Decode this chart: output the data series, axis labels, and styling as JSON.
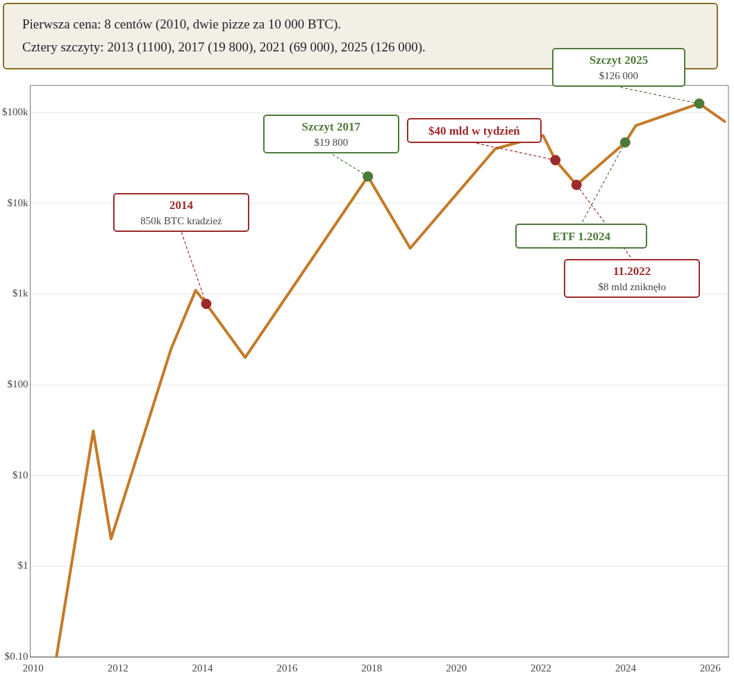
{
  "chart_data": {
    "type": "line",
    "title": "Pierwsza cena: 8 centów (2010, dwie pizze za 10 000 BTC).",
    "subtitle": "Cztery szczyty: 2013 (1100), 2017 (19 800), 2021 (69 000), 2025 (126 000).",
    "log": "y",
    "grid": "y",
    "legend": false,
    "xlim": [
      2009.93,
      2026.43
    ],
    "xticks": [
      2010,
      2012,
      2014,
      2016,
      2018,
      2020,
      2022,
      2024,
      2026
    ],
    "ylim": [
      0.1,
      200000
    ],
    "yticks": [
      {
        "value": 0.1,
        "label": "$0.10"
      },
      {
        "value": 1,
        "label": "$1"
      },
      {
        "value": 10,
        "label": "$10"
      },
      {
        "value": 100,
        "label": "$100"
      },
      {
        "value": 1000,
        "label": "$1k"
      },
      {
        "value": 10000,
        "label": "$10k"
      },
      {
        "value": 100000,
        "label": "$100k"
      }
    ],
    "series": [
      {
        "type": "line",
        "color": "#c57a27",
        "line_style": "solid",
        "x": [
          2010.55,
          2011.42,
          2011.84,
          2013.26,
          2013.84,
          2014.09,
          2015.01,
          2017.91,
          2018.91,
          2020.92,
          2022.05,
          2022.34,
          2022.84,
          2023.99,
          2024.24,
          2025.74,
          2026.34
        ],
        "values": [
          0.1,
          31,
          2,
          250,
          1100,
          780,
          200,
          19800,
          3200,
          40000,
          56000,
          30000,
          16000,
          47000,
          72000,
          126000,
          80000
        ]
      },
      {
        "type": "scatter",
        "marker": "circle",
        "colors": [
          "#9b2a2a",
          "#4d7a3a",
          "#9b2a2a",
          "#9b2a2a",
          "#4d7a3a",
          "#4d7a3a"
        ],
        "x": [
          2014.09,
          2017.91,
          2022.34,
          2022.84,
          2023.99,
          2025.74
        ],
        "values": [
          780,
          19800,
          30000,
          16000,
          47000,
          126000
        ]
      }
    ],
    "annotations": [
      {
        "text": "2014\n850k BTC kradzież",
        "x": 2014.09,
        "y": 780
      },
      {
        "text": "Szczyt 2017\n$19 800",
        "x": 2017.91,
        "y": 19800
      },
      {
        "text": "$40 mld w tydzień",
        "x": 2022.34,
        "y": 30000
      },
      {
        "text": "11.2022\n$8 mld zniknęło",
        "x": 2022.84,
        "y": 16000
      },
      {
        "text": "ETF 1.2024",
        "x": 2023.99,
        "y": 47000
      },
      {
        "text": "Szczyt 2025\n$126 000",
        "x": 2025.74,
        "y": 126000
      }
    ]
  }
}
